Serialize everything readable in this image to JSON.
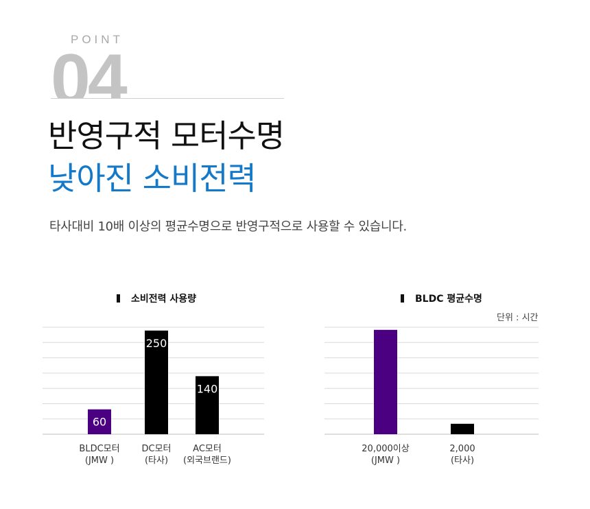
{
  "header": {
    "point_label": "POINT",
    "point_number": "04",
    "headline_line1": "반영구적 모터수명",
    "headline_line2": "낮아진 소비전력",
    "description": "타사대비 10배 이상의 평균수명으로 반영구적으로 사용할 수 있습니다."
  },
  "colors": {
    "accent_blue": "#1479c9",
    "purple": "#4b0082",
    "black": "#000000"
  },
  "chart_data": [
    {
      "type": "bar",
      "title": "소비전력 사용량",
      "categories": [
        {
          "line1": "BLDC모터",
          "line2": "(JMW )"
        },
        {
          "line1": "DC모터",
          "line2": "(타사)"
        },
        {
          "line1": "AC모터",
          "line2": "(외국브랜드)"
        }
      ],
      "values": [
        60,
        250,
        140
      ],
      "data_labels": [
        "60",
        "250",
        "140"
      ],
      "bar_colors": [
        "#4b0082",
        "#000000",
        "#000000"
      ],
      "ylim": [
        0,
        270
      ],
      "grid": true
    },
    {
      "type": "bar",
      "title": "BLDC 평균수명",
      "unit": "단위 : 시간",
      "categories": [
        {
          "line1": "20,000이상",
          "line2": "(JMW )"
        },
        {
          "line1": "2,000",
          "line2": "(타사)"
        }
      ],
      "values": [
        20000,
        2000
      ],
      "bar_colors": [
        "#4b0082",
        "#000000"
      ],
      "ylim": [
        0,
        23500
      ],
      "grid": true
    }
  ]
}
